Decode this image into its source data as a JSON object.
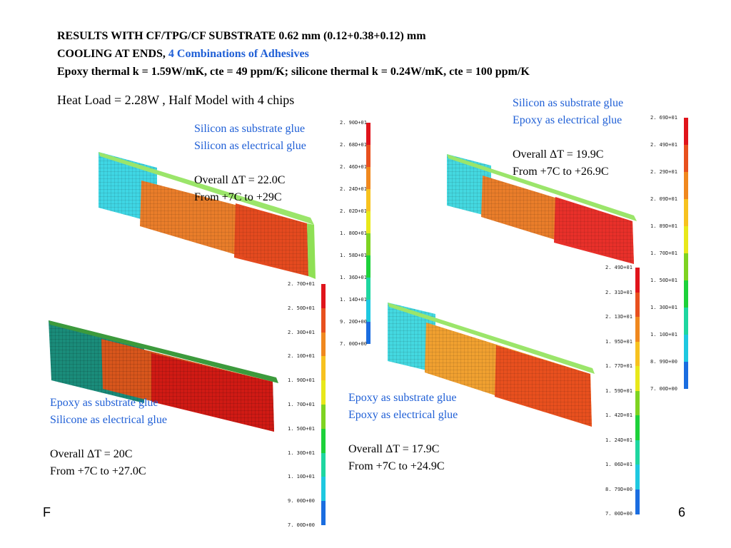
{
  "header": {
    "line1": "RESULTS WITH CF/TPG/CF SUBSTRATE 0.62 mm (0.12+0.38+0.12) mm",
    "line2_prefix": "COOLING AT ENDS, ",
    "line2_highlight": "4 Combinations of Adhesives",
    "line3": "Epoxy thermal k = 1.59W/mK, cte = 49 ppm/K; silicone thermal k = 0.24W/mK, cte = 100 ppm/K"
  },
  "heat_load": "Heat Load = 2.28W , Half Model with 4 chips",
  "panels": [
    {
      "glue1": "Silicon as substrate glue",
      "glue2": "Silicon as electrical glue",
      "delta": "Overall ΔT = 22.0C",
      "range": "From +7C to +29C",
      "scale": [
        "2. 90D+01",
        "2. 68D+01",
        "2. 46D+01",
        "2. 24D+01",
        "2. 02D+01",
        "1. 80D+01",
        "1. 58D+01",
        "1. 36D+01",
        "1. 14D+01",
        "9. 20D+00",
        "7. 00D+00"
      ]
    },
    {
      "glue1": "Silicon as substrate glue",
      "glue2": "Epoxy as electrical glue",
      "delta": "Overall ΔT = 19.9C",
      "range": "From +7C to +26.9C",
      "scale": [
        "2. 69D+01",
        "2. 49D+01",
        "2. 29D+01",
        "2. 09D+01",
        "1. 89D+01",
        "1. 70D+01",
        "1. 50D+01",
        "1. 30D+01",
        "1. 10D+01",
        "8. 99D+00",
        "7. 00D+00"
      ]
    },
    {
      "glue1": "Epoxy as substrate glue",
      "glue2": "Silicone as electrical glue",
      "delta": "Overall ΔT = 20C",
      "range": "From +7C to +27.0C",
      "scale": [
        "2. 70D+01",
        "2. 50D+01",
        "2. 30D+01",
        "2. 10D+01",
        "1. 90D+01",
        "1. 70D+01",
        "1. 50D+01",
        "1. 30D+01",
        "1. 10D+01",
        "9. 00D+00",
        "7. 00D+00"
      ]
    },
    {
      "glue1": "Epoxy as substrate glue",
      "glue2": "Epoxy as electrical glue",
      "delta": "Overall ΔT = 17.9C",
      "range": "From +7C to +24.9C",
      "scale": [
        "2. 49D+01",
        "2. 31D+01",
        "2. 13D+01",
        "1. 95D+01",
        "1. 77D+01",
        "1. 59D+01",
        "1. 42D+01",
        "1. 24D+01",
        "1. 06D+01",
        "8. 79D+00",
        "7. 00D+00"
      ]
    }
  ],
  "footer_left": "F",
  "page_number": "6",
  "colors": {
    "highlight": "#1f5fd6",
    "scale": [
      "#e0141b",
      "#e8501e",
      "#f0881e",
      "#f7c21f",
      "#e8e81a",
      "#7ed321",
      "#1dd13a",
      "#1ed6a0",
      "#1ec8e0",
      "#1a6de0",
      "#1b1bd0"
    ]
  }
}
